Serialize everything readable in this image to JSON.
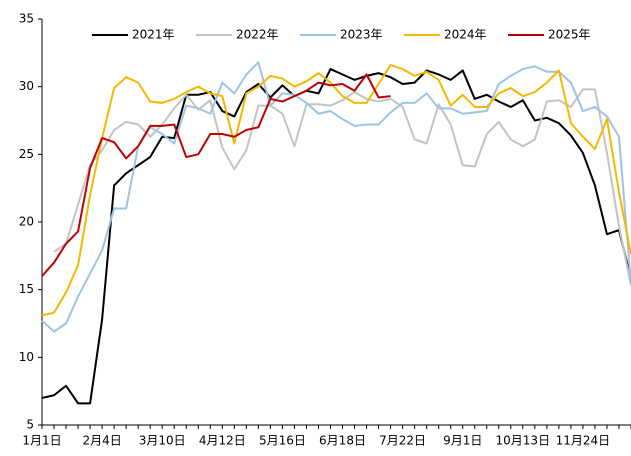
{
  "chart_data": {
    "type": "line",
    "categories": [
      "1月1日",
      null,
      null,
      null,
      null,
      "2月4日",
      null,
      null,
      null,
      null,
      "3月10日",
      null,
      null,
      null,
      null,
      "4月12日",
      null,
      null,
      null,
      null,
      "5月16日",
      null,
      null,
      null,
      null,
      "6月18日",
      null,
      null,
      null,
      null,
      "7月22日",
      null,
      null,
      null,
      null,
      "9月1日",
      null,
      null,
      null,
      null,
      "10月13日",
      null,
      null,
      null,
      null,
      "11月24日",
      null,
      null,
      null,
      null
    ],
    "ylim": [
      5,
      35
    ],
    "yticks": [
      5,
      10,
      15,
      20,
      25,
      30,
      35
    ],
    "series": [
      {
        "name": "2021年",
        "color": "#000000",
        "values": [
          7.0,
          7.2,
          7.9,
          6.6,
          6.6,
          12.8,
          22.7,
          23.6,
          24.2,
          24.8,
          26.3,
          26.2,
          29.4,
          29.4,
          29.6,
          28.2,
          27.8,
          29.6,
          30.2,
          29.2,
          30.1,
          29.3,
          29.7,
          29.5,
          31.3,
          30.9,
          30.5,
          30.8,
          31.0,
          30.7,
          30.2,
          30.3,
          31.2,
          30.9,
          30.5,
          31.2,
          29.1,
          29.4,
          28.9,
          28.5,
          29.0,
          27.5,
          27.7,
          27.3,
          26.4,
          25.1,
          22.7,
          19.1,
          19.4,
          15.8
        ]
      },
      {
        "name": "2022年",
        "color": "#c3c3c3",
        "values": [
          null,
          17.8,
          18.4,
          21.3,
          24.2,
          25.3,
          26.8,
          27.4,
          27.2,
          26.3,
          27.2,
          28.4,
          29.4,
          28.3,
          29.0,
          25.5,
          23.9,
          25.3,
          28.6,
          28.6,
          28.0,
          25.6,
          28.7,
          28.7,
          28.6,
          29.0,
          29.6,
          29.1,
          28.9,
          29.1,
          28.5,
          26.1,
          25.8,
          28.7,
          27.2,
          24.2,
          24.1,
          26.5,
          27.4,
          26.1,
          25.6,
          26.1,
          28.9,
          29.0,
          28.5,
          29.8,
          29.8,
          25.1,
          19.7,
          15.3
        ]
      },
      {
        "name": "2023年",
        "color": "#9dc3e6",
        "values": [
          12.7,
          11.9,
          12.5,
          14.5,
          16.2,
          17.9,
          21.0,
          21.0,
          25.6,
          27.0,
          26.5,
          25.8,
          28.6,
          28.4,
          28.0,
          30.3,
          29.5,
          30.9,
          31.8,
          28.6,
          29.5,
          29.4,
          28.8,
          28.0,
          28.2,
          27.6,
          27.1,
          27.2,
          27.2,
          28.1,
          28.8,
          28.8,
          29.5,
          28.4,
          28.4,
          28.0,
          28.1,
          28.2,
          30.2,
          30.8,
          31.3,
          31.5,
          31.1,
          31.1,
          30.3,
          28.2,
          28.5,
          27.8,
          26.3,
          15.4
        ]
      },
      {
        "name": "2024年",
        "color": "#f5b800",
        "values": [
          13.1,
          13.3,
          14.8,
          16.8,
          22.0,
          26.2,
          29.9,
          30.7,
          30.3,
          28.9,
          28.8,
          29.1,
          29.6,
          30.0,
          29.5,
          29.3,
          25.8,
          29.5,
          30.0,
          30.8,
          30.6,
          30.0,
          30.4,
          31.0,
          30.3,
          29.3,
          28.8,
          28.8,
          30.2,
          31.6,
          31.3,
          30.8,
          31.1,
          30.5,
          28.6,
          29.4,
          28.5,
          28.5,
          29.5,
          29.9,
          29.3,
          29.6,
          30.3,
          31.2,
          27.3,
          26.3,
          25.4,
          27.6,
          22.2,
          17.6
        ]
      },
      {
        "name": "2025年",
        "color": "#c00000",
        "values": [
          16.0,
          17.0,
          18.4,
          19.3,
          24.0,
          26.2,
          25.9,
          24.7,
          25.6,
          27.1,
          27.1,
          27.2,
          24.8,
          25.0,
          26.5,
          26.5,
          26.3,
          26.8,
          27.0,
          29.1,
          28.9,
          29.3,
          29.7,
          30.3,
          30.1,
          30.2,
          29.7,
          30.9,
          29.2,
          29.3,
          null,
          null,
          null,
          null,
          null,
          null,
          null,
          null,
          null,
          null,
          null,
          null,
          null,
          null,
          null,
          null,
          null,
          null,
          null,
          null
        ]
      }
    ]
  }
}
